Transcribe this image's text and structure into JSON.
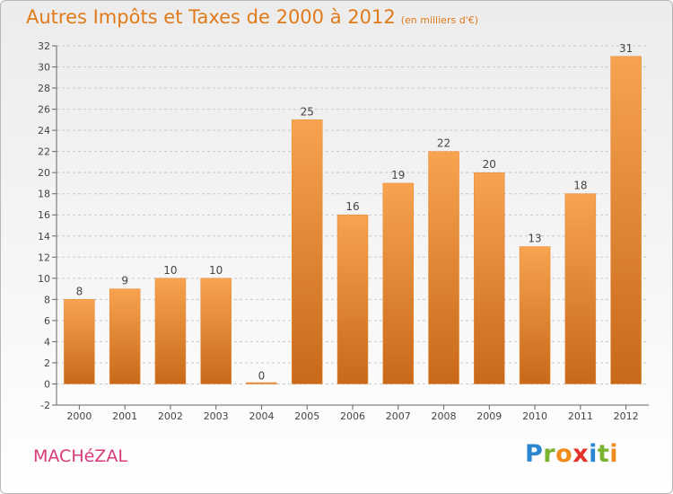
{
  "header": {
    "title": "Autres Impôts et Taxes de 2000 à 2012",
    "unit_note": "(en milliers d'€)"
  },
  "footer": {
    "commune": "MACHéZAL",
    "logo_text": "Proxiti"
  },
  "colors": {
    "bar_light": "#f7a34f",
    "bar_dark": "#c8691a",
    "title": "#e07a1a",
    "commune": "#d83a7c"
  },
  "chart_data": {
    "type": "bar",
    "title": "Autres Impôts et Taxes de 2000 à 2012",
    "subtitle": "(en milliers d'€)",
    "categories": [
      "2000",
      "2001",
      "2002",
      "2003",
      "2004",
      "2005",
      "2006",
      "2007",
      "2008",
      "2009",
      "2010",
      "2011",
      "2012"
    ],
    "values": [
      8,
      9,
      10,
      10,
      0,
      25,
      16,
      19,
      22,
      20,
      13,
      18,
      31
    ],
    "data_labels": [
      "8",
      "9",
      "10",
      "10",
      "0",
      "25",
      "16",
      "19",
      "22",
      "20",
      "13",
      "18",
      "31"
    ],
    "ylim": [
      -2,
      32
    ],
    "yticks": [
      -2,
      0,
      2,
      4,
      6,
      8,
      10,
      12,
      14,
      16,
      18,
      20,
      22,
      24,
      26,
      28,
      30,
      32
    ],
    "grid": "horizontal-dashed",
    "legend": "none"
  }
}
